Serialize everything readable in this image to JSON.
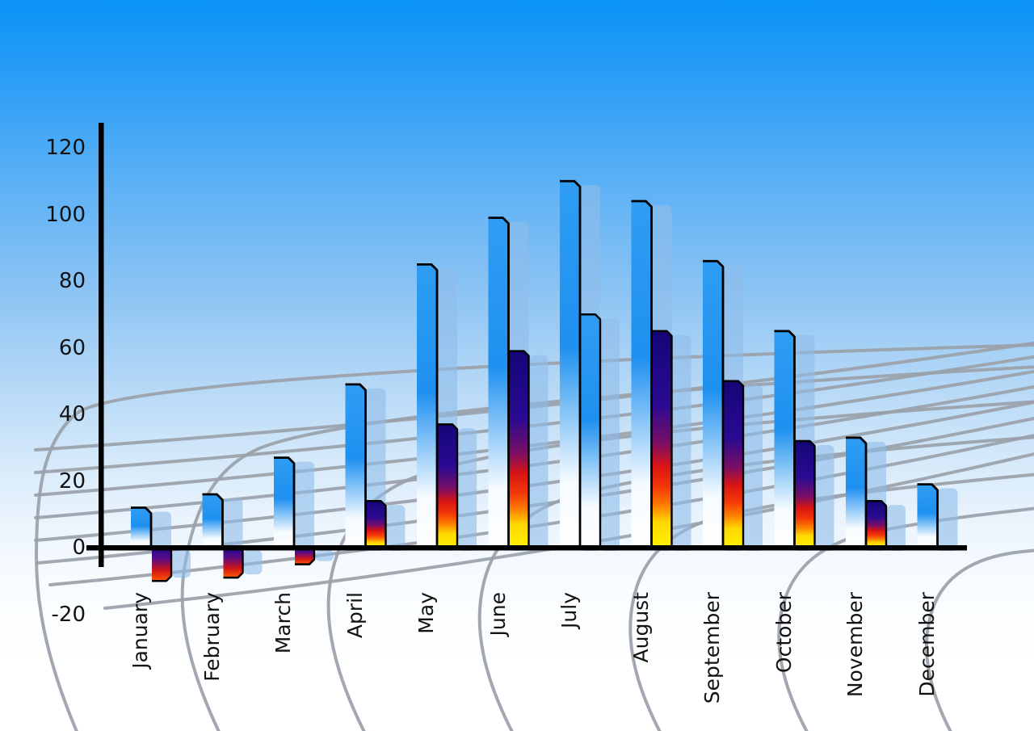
{
  "page": {
    "description": "3D-style monthly bar chart floating over a blue sky gradient with a curved gray perspective grid floor",
    "title": ""
  },
  "colors": {
    "sky_top": "#0a93f6",
    "sky_bottom": "#ffffff",
    "bar_blue_top": "#2f9df3",
    "bar_blue_mid": "#1e90f0",
    "bar_blue_fade": "#f6fbff",
    "bar_blue_white": "#ffffff",
    "bar_shadow": "#8fbcea",
    "fire_navy": "#140677",
    "fire_indigo": "#2a0a92",
    "fire_plum": "#7c0e63",
    "fire_crimson": "#d81414",
    "fire_red": "#f33808",
    "fire_orange": "#fe7c00",
    "fire_amber": "#ffd800",
    "fire_yellow": "#fff300",
    "neg_navy": "#1c0a8e",
    "neg_purple": "#550b86",
    "neg_red": "#d01518",
    "neg_orange": "#ff5a00",
    "grid_line": "#9aa1a9",
    "axis": "#000000",
    "label_text": "#121212"
  },
  "chart_data": {
    "type": "bar",
    "title": "",
    "xlabel": "",
    "ylabel": "",
    "categories": [
      "January",
      "February",
      "March",
      "April",
      "May",
      "June",
      "July",
      "August",
      "September",
      "October",
      "November",
      "December"
    ],
    "series": [
      {
        "name": "primary blue bars",
        "values": [
          12,
          16,
          27,
          49,
          85,
          99,
          110,
          104,
          86,
          65,
          33,
          19
        ]
      },
      {
        "name": "secondary gradient bars",
        "values": [
          -10,
          -9,
          -5,
          14,
          37,
          59,
          70,
          65,
          50,
          32,
          14,
          null
        ]
      }
    ],
    "secondary_bar_styles": [
      "fire",
      "fire",
      "fire",
      "fire",
      "fire",
      "fire",
      "blue",
      "fire",
      "fire",
      "fire",
      "fire",
      null
    ],
    "y_axis": {
      "ticks": [
        120,
        100,
        80,
        60,
        40,
        20,
        0,
        -20
      ],
      "min": -20,
      "max": 120,
      "gridlines": false
    },
    "x_axis": {
      "label_rotation": -90
    },
    "legend": "none",
    "background": "sky-blue gradient with curved gray perspective grid in lower half; each bar casts a translucent light-blue offset shadow copy"
  }
}
